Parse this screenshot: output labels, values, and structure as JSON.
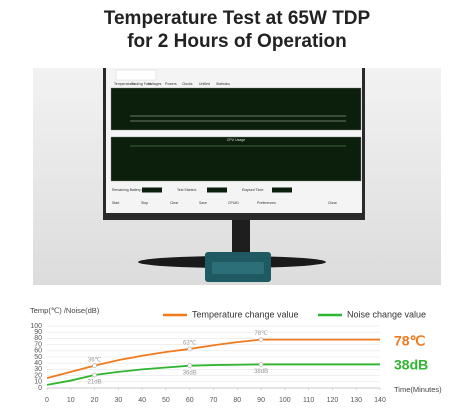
{
  "title": [
    "Temperature Test at 65W TDP",
    "for 2 Hours of Operation"
  ],
  "screen": {
    "tabs": [
      "Temperatures",
      "Cooling Fans",
      "Voltages",
      "Powers",
      "Clocks",
      "Unified",
      "Statistics"
    ],
    "graph_title": "CPU Usage",
    "status": [
      "Remaining Battery:",
      "Test Started:",
      "Elapsed Time:"
    ],
    "buttons": [
      "Start",
      "Stop",
      "Clear",
      "Save",
      "CPUID",
      "Preferences",
      "Close"
    ]
  },
  "chart_data": {
    "type": "line",
    "ylabel": "Temp(℃) /Noise(dB)",
    "xlabel": "Time(Minutes)",
    "x": [
      0,
      10,
      20,
      30,
      40,
      50,
      60,
      70,
      80,
      90,
      100,
      110,
      120,
      130,
      140
    ],
    "series": [
      {
        "name": "Temperature change value",
        "color": "#f07a1e",
        "values": [
          16,
          26,
          36,
          45,
          52,
          58,
          63,
          69,
          74,
          78,
          78,
          78,
          78,
          78,
          78
        ],
        "value_labels": [
          null,
          null,
          "36℃",
          null,
          null,
          null,
          "63℃",
          null,
          null,
          "78℃",
          null,
          null,
          null,
          null,
          null
        ]
      },
      {
        "name": "Noise change value",
        "color": "#2fb52f",
        "values": [
          5,
          12,
          21,
          26,
          30,
          33,
          36,
          37,
          37.5,
          38,
          38,
          38,
          38,
          38,
          38
        ],
        "value_labels": [
          null,
          null,
          "21dB",
          null,
          null,
          null,
          "36dB",
          null,
          null,
          "38dB",
          null,
          null,
          null,
          null,
          null
        ]
      }
    ],
    "xlim": [
      0,
      140
    ],
    "xticks": [
      0,
      10,
      20,
      30,
      40,
      50,
      60,
      70,
      80,
      90,
      100,
      110,
      120,
      130,
      140
    ],
    "ylim": [
      0,
      100
    ],
    "yticks": [
      0,
      10,
      20,
      30,
      40,
      50,
      60,
      70,
      80,
      90,
      100
    ],
    "grid": true,
    "legend": "top",
    "annotations": [
      {
        "text": "78℃",
        "color": "#f07a1e"
      },
      {
        "text": "38dB",
        "color": "#2fb52f"
      }
    ]
  }
}
